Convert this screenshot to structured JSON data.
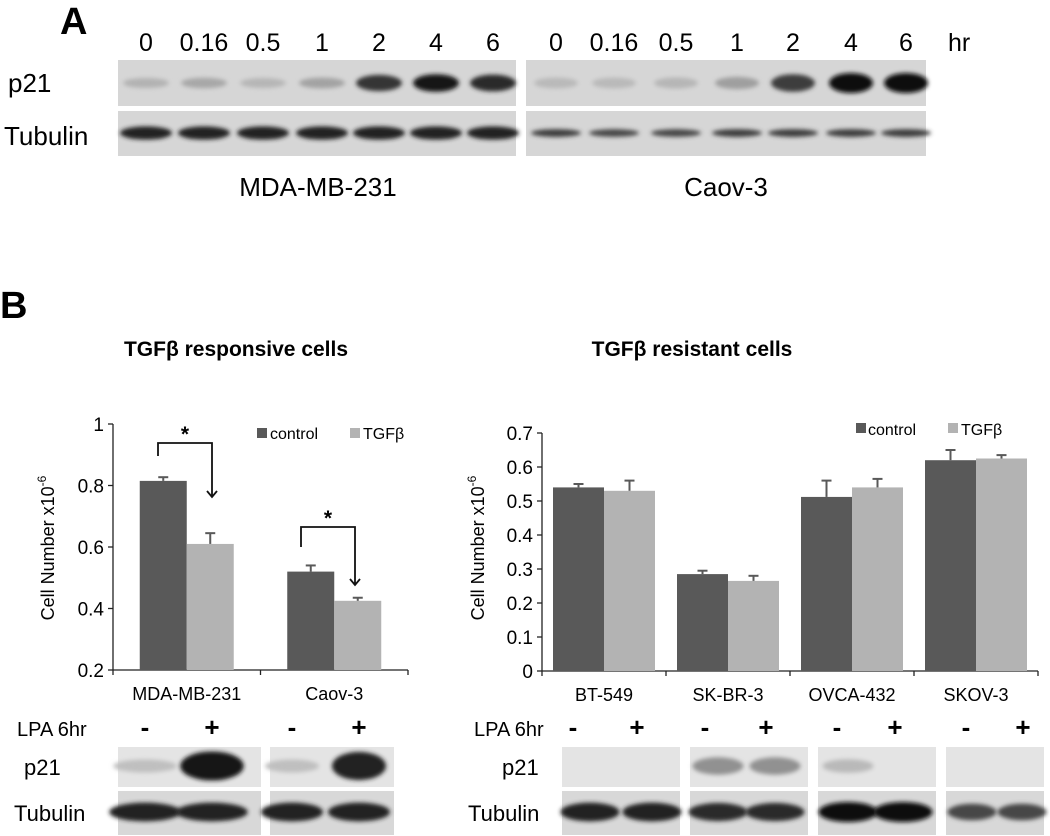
{
  "panel_a": {
    "letter": "A",
    "time_labels": [
      "0",
      "0.16",
      "0.5",
      "1",
      "2",
      "4",
      "6"
    ],
    "time_unit": "hr",
    "row_labels": [
      "p21",
      "Tubulin"
    ],
    "blots": [
      {
        "cell_line": "MDA-MB-231",
        "p21_intensity": [
          0.12,
          0.18,
          0.1,
          0.2,
          0.8,
          0.95,
          0.85
        ],
        "tubulin_intensity": [
          0.9,
          0.9,
          0.9,
          0.9,
          0.9,
          0.9,
          0.9
        ]
      },
      {
        "cell_line": "Caov-3",
        "p21_intensity": [
          0.08,
          0.08,
          0.1,
          0.22,
          0.75,
          1.0,
          1.0
        ],
        "tubulin_intensity": [
          0.75,
          0.7,
          0.7,
          0.75,
          0.75,
          0.75,
          0.75
        ]
      }
    ]
  },
  "panel_b": {
    "letter": "B",
    "left_title": "TGFβ responsive cells",
    "right_title": "TGFβ resistant cells",
    "lpa_label": "LPA 6hr",
    "lpa_signs": [
      "-",
      "+"
    ],
    "row_labels": [
      "p21",
      "Tubulin"
    ],
    "left_blots": [
      {
        "cell_line": "MDA-MB-231",
        "p21_intensity": [
          0.05,
          0.95
        ],
        "tubulin_intensity": [
          0.9,
          0.9
        ]
      },
      {
        "cell_line": "Caov-3",
        "p21_intensity": [
          0.05,
          0.9
        ],
        "tubulin_intensity": [
          0.9,
          0.9
        ]
      }
    ],
    "right_blots": [
      {
        "cell_line": "BT-549",
        "p21_intensity": [
          0.0,
          0.0
        ],
        "tubulin_intensity": [
          0.9,
          0.9
        ]
      },
      {
        "cell_line": "SK-BR-3",
        "p21_intensity": [
          0.3,
          0.3
        ],
        "tubulin_intensity": [
          0.85,
          0.85
        ]
      },
      {
        "cell_line": "OVCA-432",
        "p21_intensity": [
          0.08,
          0.0
        ],
        "tubulin_intensity": [
          1.0,
          1.0
        ]
      },
      {
        "cell_line": "SKOV-3",
        "p21_intensity": [
          0.0,
          0.0
        ],
        "tubulin_intensity": [
          0.7,
          0.7
        ]
      }
    ]
  },
  "colors": {
    "control": "#595959",
    "tgfb": "#b3b3b3",
    "error": "#595959"
  },
  "chart_data": [
    {
      "type": "bar",
      "title": "TGFβ responsive cells",
      "categories": [
        "MDA-MB-231",
        "Caov-3"
      ],
      "series": [
        {
          "name": "control",
          "values": [
            0.815,
            0.52
          ],
          "errors": [
            0.012,
            0.02
          ]
        },
        {
          "name": "TGFβ",
          "values": [
            0.61,
            0.425
          ],
          "errors": [
            0.035,
            0.01
          ]
        }
      ],
      "ylabel": "Cell Number x10",
      "ylabel_superscript": "-6",
      "ylim": [
        0.2,
        1
      ],
      "yticks": [
        "0.2",
        "0.4",
        "0.6",
        "0.8",
        "1"
      ],
      "legend": "top-right",
      "annotations": [
        "*",
        "*"
      ],
      "grid": false
    },
    {
      "type": "bar",
      "title": "TGFβ resistant cells",
      "categories": [
        "BT-549",
        "SK-BR-3",
        "OVCA-432",
        "SKOV-3"
      ],
      "series": [
        {
          "name": "control",
          "values": [
            0.54,
            0.285,
            0.512,
            0.62
          ],
          "errors": [
            0.01,
            0.01,
            0.048,
            0.03
          ]
        },
        {
          "name": "TGFβ",
          "values": [
            0.53,
            0.265,
            0.54,
            0.625
          ],
          "errors": [
            0.03,
            0.015,
            0.025,
            0.01
          ]
        }
      ],
      "ylabel": "Cell Number x10",
      "ylabel_superscript": "-6",
      "ylim": [
        0,
        0.7
      ],
      "yticks": [
        "0",
        "0.1",
        "0.2",
        "0.3",
        "0.4",
        "0.5",
        "0.6",
        "0.7"
      ],
      "legend": "top-right",
      "grid": false
    }
  ]
}
